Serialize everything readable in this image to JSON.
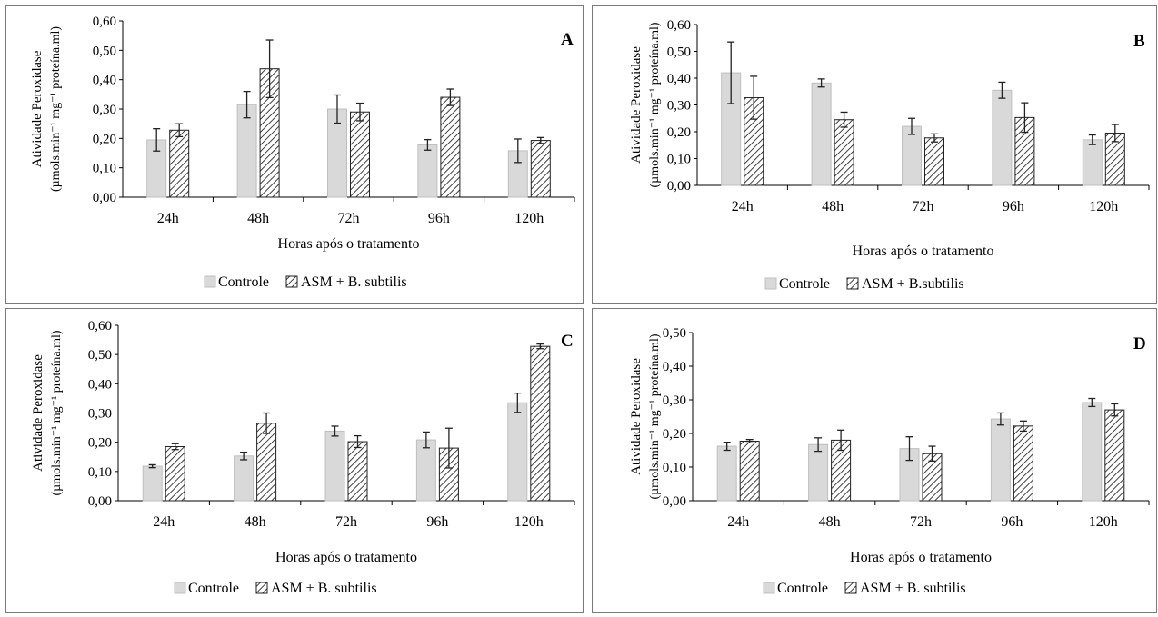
{
  "colors": {
    "controle_fill": "#d9d9d9",
    "asm_hatch": "#404040",
    "axis": "#000000"
  },
  "chart_data": [
    {
      "panel": "A",
      "type": "bar",
      "ylabel_line1": "Atividade Peroxidase",
      "ylabel_line2": "(µmols.min⁻¹ mg⁻¹ proteína.ml)",
      "xlabel": "Horas após o tratamento",
      "categories": [
        "24h",
        "48h",
        "72h",
        "96h",
        "120h"
      ],
      "ylim": [
        0,
        0.6
      ],
      "ytick_step": 0.1,
      "yticks": [
        "0,00",
        "0,10",
        "0,20",
        "0,30",
        "0,40",
        "0,50",
        "0,60"
      ],
      "legend": [
        "Controle",
        "ASM + B. subtilis"
      ],
      "series": [
        {
          "name": "Controle",
          "values": [
            0.195,
            0.315,
            0.3,
            0.178,
            0.158
          ],
          "errors": [
            0.038,
            0.045,
            0.048,
            0.018,
            0.04
          ]
        },
        {
          "name": "ASM + B. subtilis",
          "values": [
            0.228,
            0.437,
            0.29,
            0.34,
            0.193
          ],
          "errors": [
            0.022,
            0.098,
            0.03,
            0.028,
            0.01
          ]
        }
      ]
    },
    {
      "panel": "B",
      "type": "bar",
      "ylabel_line1": "Atividade Peroxidase",
      "ylabel_line2": "(µmols.min⁻¹ mg⁻¹ proteína.ml)",
      "xlabel": "Horas após o tratamento",
      "categories": [
        "24h",
        "48h",
        "72h",
        "96h",
        "120h"
      ],
      "ylim": [
        0,
        0.6
      ],
      "ytick_step": 0.1,
      "yticks": [
        "0,00",
        "0,10",
        "0,20",
        "0,30",
        "0,40",
        "0,50",
        "0,60"
      ],
      "legend": [
        "Controle",
        "ASM + B.subtilis"
      ],
      "series": [
        {
          "name": "Controle",
          "values": [
            0.42,
            0.382,
            0.22,
            0.355,
            0.17
          ],
          "errors": [
            0.115,
            0.015,
            0.03,
            0.03,
            0.018
          ]
        },
        {
          "name": "ASM + B.subtilis",
          "values": [
            0.327,
            0.245,
            0.177,
            0.253,
            0.195
          ],
          "errors": [
            0.08,
            0.028,
            0.015,
            0.055,
            0.032
          ]
        }
      ]
    },
    {
      "panel": "C",
      "type": "bar",
      "ylabel_line1": "Atividade Peroxidase",
      "ylabel_line2": "(µmols.min⁻¹ mg⁻¹ proteína.ml)",
      "xlabel": "Horas após o tratamento",
      "categories": [
        "24h",
        "48h",
        "72h",
        "96h",
        "120h"
      ],
      "ylim": [
        0,
        0.6
      ],
      "ytick_step": 0.1,
      "yticks": [
        "0,00",
        "0,10",
        "0,20",
        "0,30",
        "0,40",
        "0,50",
        "0,60"
      ],
      "legend": [
        "Controle",
        "ASM + B. subtilis"
      ],
      "series": [
        {
          "name": "Controle",
          "values": [
            0.118,
            0.153,
            0.238,
            0.208,
            0.335
          ],
          "errors": [
            0.005,
            0.013,
            0.017,
            0.027,
            0.033
          ]
        },
        {
          "name": "ASM + B. subtilis",
          "values": [
            0.185,
            0.265,
            0.202,
            0.18,
            0.528
          ],
          "errors": [
            0.01,
            0.035,
            0.02,
            0.068,
            0.008
          ]
        }
      ]
    },
    {
      "panel": "D",
      "type": "bar",
      "ylabel_line1": "Atividade Peroxidase",
      "ylabel_line2": "(µmols.min⁻¹ mg⁻¹ proteína.ml)",
      "xlabel": "Horas após o tratamento",
      "categories": [
        "24h",
        "48h",
        "72h",
        "96h",
        "120h"
      ],
      "ylim": [
        0,
        0.5
      ],
      "ytick_step": 0.1,
      "yticks": [
        "0,00",
        "0,10",
        "0,20",
        "0,30",
        "0,40",
        "0,50"
      ],
      "legend": [
        "Controle",
        "ASM + B. subtilis"
      ],
      "series": [
        {
          "name": "Controle",
          "values": [
            0.162,
            0.167,
            0.155,
            0.243,
            0.292
          ],
          "errors": [
            0.012,
            0.02,
            0.035,
            0.018,
            0.012
          ]
        },
        {
          "name": "ASM + B. subtilis",
          "values": [
            0.177,
            0.18,
            0.14,
            0.222,
            0.27
          ],
          "errors": [
            0.005,
            0.03,
            0.022,
            0.015,
            0.018
          ]
        }
      ]
    }
  ]
}
